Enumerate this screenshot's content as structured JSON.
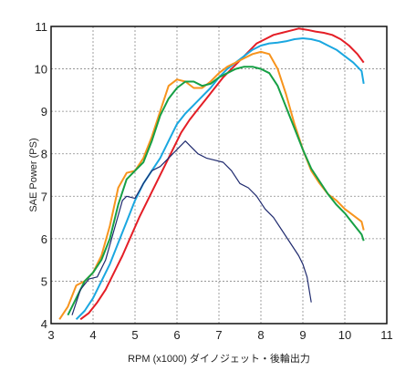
{
  "chart_data": {
    "type": "line",
    "xlabel": "RPM (x1000) ダイノジェット・後輪出力",
    "ylabel": "SAE Power (PS)",
    "xlim": [
      3,
      11
    ],
    "ylim": [
      4,
      11
    ],
    "xticks": [
      3,
      4,
      5,
      6,
      7,
      8,
      9,
      10,
      11
    ],
    "yticks": [
      4,
      5,
      6,
      7,
      8,
      9,
      10,
      11
    ],
    "grid": true,
    "series": [
      {
        "color": "#e41e26",
        "x": [
          3.7,
          3.9,
          4.1,
          4.3,
          4.5,
          4.7,
          4.9,
          5.1,
          5.3,
          5.5,
          5.7,
          5.9,
          6.1,
          6.3,
          6.5,
          6.7,
          6.9,
          7.1,
          7.3,
          7.5,
          7.7,
          7.9,
          8.1,
          8.3,
          8.5,
          8.7,
          8.9,
          9.1,
          9.3,
          9.5,
          9.7,
          9.9,
          10.1,
          10.3,
          10.45
        ],
        "y": [
          4.1,
          4.25,
          4.5,
          4.8,
          5.2,
          5.6,
          6.05,
          6.5,
          6.9,
          7.3,
          7.7,
          8.1,
          8.5,
          8.8,
          9.05,
          9.3,
          9.55,
          9.8,
          10.0,
          10.2,
          10.4,
          10.6,
          10.7,
          10.8,
          10.85,
          10.9,
          10.95,
          10.92,
          10.88,
          10.85,
          10.8,
          10.7,
          10.55,
          10.35,
          10.15
        ]
      },
      {
        "color": "#1aa7e0",
        "x": [
          3.6,
          3.8,
          4.0,
          4.2,
          4.4,
          4.6,
          4.8,
          5.0,
          5.2,
          5.4,
          5.6,
          5.8,
          6.0,
          6.2,
          6.4,
          6.6,
          6.8,
          7.0,
          7.2,
          7.4,
          7.6,
          7.8,
          8.0,
          8.2,
          8.4,
          8.6,
          8.8,
          9.0,
          9.2,
          9.4,
          9.6,
          9.8,
          10.0,
          10.2,
          10.4,
          10.45
        ],
        "y": [
          4.1,
          4.3,
          4.6,
          5.0,
          5.4,
          5.9,
          6.4,
          6.9,
          7.3,
          7.6,
          7.9,
          8.3,
          8.7,
          8.95,
          9.15,
          9.35,
          9.55,
          9.8,
          10.0,
          10.15,
          10.3,
          10.45,
          10.55,
          10.6,
          10.62,
          10.65,
          10.7,
          10.72,
          10.7,
          10.65,
          10.55,
          10.45,
          10.3,
          10.15,
          9.95,
          9.65
        ]
      },
      {
        "color": "#f7941d",
        "x": [
          3.2,
          3.4,
          3.6,
          3.8,
          4.0,
          4.2,
          4.4,
          4.6,
          4.8,
          5.0,
          5.2,
          5.4,
          5.6,
          5.8,
          6.0,
          6.2,
          6.4,
          6.6,
          6.8,
          7.0,
          7.2,
          7.4,
          7.6,
          7.8,
          8.0,
          8.2,
          8.4,
          8.6,
          8.8,
          9.0,
          9.2,
          9.4,
          9.6,
          9.8,
          10.0,
          10.2,
          10.4,
          10.45
        ],
        "y": [
          4.1,
          4.4,
          4.9,
          5.0,
          5.2,
          5.6,
          6.3,
          7.2,
          7.55,
          7.6,
          7.9,
          8.4,
          9.0,
          9.6,
          9.75,
          9.7,
          9.55,
          9.55,
          9.7,
          9.9,
          10.05,
          10.15,
          10.25,
          10.35,
          10.4,
          10.35,
          10.0,
          9.4,
          8.7,
          8.1,
          7.6,
          7.3,
          7.05,
          6.9,
          6.7,
          6.55,
          6.4,
          6.2
        ]
      },
      {
        "color": "#16a045",
        "x": [
          3.4,
          3.6,
          3.8,
          4.0,
          4.2,
          4.4,
          4.6,
          4.8,
          5.0,
          5.2,
          5.4,
          5.6,
          5.8,
          6.0,
          6.2,
          6.4,
          6.6,
          6.8,
          7.0,
          7.2,
          7.4,
          7.6,
          7.8,
          8.0,
          8.2,
          8.4,
          8.6,
          8.8,
          9.0,
          9.2,
          9.4,
          9.6,
          9.8,
          10.0,
          10.2,
          10.4,
          10.45
        ],
        "y": [
          4.2,
          4.6,
          5.0,
          5.2,
          5.5,
          6.0,
          6.8,
          7.4,
          7.6,
          7.8,
          8.3,
          8.9,
          9.3,
          9.55,
          9.7,
          9.7,
          9.6,
          9.65,
          9.8,
          9.9,
          10.0,
          10.05,
          10.05,
          10.0,
          9.9,
          9.6,
          9.1,
          8.6,
          8.1,
          7.65,
          7.35,
          7.05,
          6.8,
          6.6,
          6.35,
          6.1,
          5.95
        ]
      },
      {
        "color": "#1f2a6e",
        "x": [
          3.5,
          3.7,
          3.9,
          4.1,
          4.3,
          4.5,
          4.7,
          4.8,
          5.0,
          5.2,
          5.4,
          5.6,
          5.8,
          6.0,
          6.2,
          6.3,
          6.5,
          6.7,
          6.9,
          7.1,
          7.3,
          7.5,
          7.7,
          7.9,
          8.1,
          8.3,
          8.5,
          8.7,
          8.9,
          9.0,
          9.1,
          9.2
        ],
        "y": [
          4.2,
          4.8,
          5.05,
          5.1,
          5.5,
          6.2,
          6.9,
          7.0,
          6.95,
          7.3,
          7.6,
          7.7,
          7.9,
          8.1,
          8.3,
          8.2,
          8.0,
          7.9,
          7.85,
          7.8,
          7.6,
          7.3,
          7.2,
          7.0,
          6.7,
          6.5,
          6.2,
          5.9,
          5.6,
          5.4,
          5.1,
          4.5
        ]
      }
    ]
  },
  "colors": {
    "plot_border": "#111111",
    "grid": "#888888",
    "page_background": "#ffffff"
  }
}
